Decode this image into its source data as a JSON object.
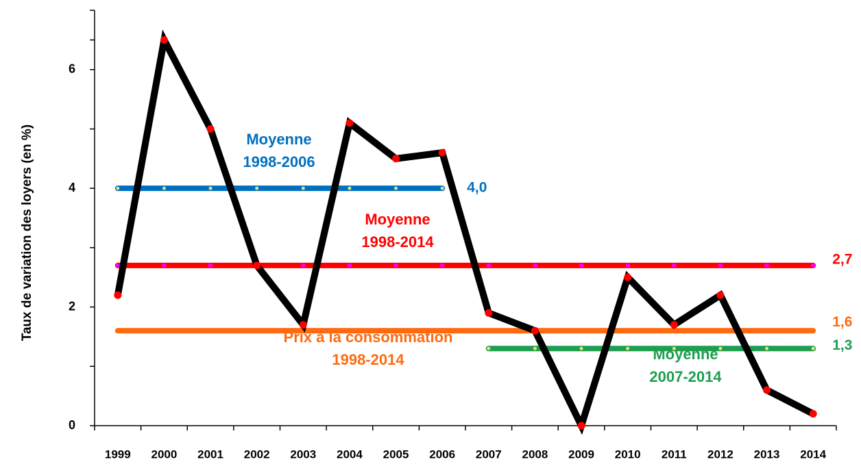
{
  "chart_data": {
    "type": "line",
    "y_label": "Taux de variation des loyers  (en %)",
    "categories": [
      "1999",
      "2000",
      "2001",
      "2002",
      "2003",
      "2004",
      "2005",
      "2006",
      "2007",
      "2008",
      "2009",
      "2010",
      "2011",
      "2012",
      "2013",
      "2014"
    ],
    "ylim": [
      0,
      7
    ],
    "yticks": [
      0,
      2,
      4,
      6
    ],
    "series": [
      {
        "color": "#000000",
        "marker_color": "#ff0000",
        "values": [
          2.2,
          6.5,
          5.0,
          2.7,
          1.7,
          5.1,
          4.5,
          4.6,
          1.9,
          1.6,
          0,
          2.5,
          1.7,
          2.2,
          0.6,
          0.2
        ]
      },
      {
        "color": "#0070c0",
        "marker_color": "#e0e080",
        "values": [
          4.0,
          4.0,
          4.0,
          4.0,
          4.0,
          4.0,
          4.0,
          4.0,
          null,
          null,
          null,
          null,
          null,
          null,
          null,
          null
        ],
        "value_labels": [
          null,
          null,
          null,
          null,
          null,
          null,
          null,
          "4,0",
          null,
          null,
          null,
          null,
          null,
          null,
          null,
          null
        ]
      },
      {
        "color": "#ff0000",
        "marker_color": "#ff00ff",
        "values": [
          2.7,
          2.7,
          2.7,
          2.7,
          2.7,
          2.7,
          2.7,
          2.7,
          2.7,
          2.7,
          2.7,
          2.7,
          2.7,
          2.7,
          2.7,
          2.7
        ],
        "value_labels": [
          null,
          null,
          null,
          null,
          null,
          null,
          null,
          null,
          null,
          null,
          null,
          null,
          null,
          null,
          null,
          "2,7"
        ]
      },
      {
        "color": "#ff6a10",
        "values": [
          1.6,
          1.6,
          1.6,
          1.6,
          1.6,
          1.6,
          1.6,
          1.6,
          1.6,
          1.6,
          1.6,
          1.6,
          1.6,
          1.6,
          1.6,
          1.6
        ],
        "value_labels": [
          null,
          null,
          null,
          null,
          null,
          null,
          null,
          null,
          null,
          null,
          null,
          null,
          null,
          null,
          null,
          "1,6"
        ]
      },
      {
        "color": "#1e9e50",
        "marker_color": "#f0e070",
        "values": [
          null,
          null,
          null,
          null,
          null,
          null,
          null,
          null,
          1.3,
          1.3,
          1.3,
          1.3,
          1.3,
          1.3,
          1.3,
          1.3
        ],
        "value_labels": [
          null,
          null,
          null,
          null,
          null,
          null,
          null,
          null,
          null,
          null,
          null,
          null,
          null,
          null,
          null,
          "1,3"
        ]
      }
    ],
    "annotations": [
      {
        "lines": [
          "Moyenne",
          "1998-2006"
        ],
        "color": "#0070c0"
      },
      {
        "lines": [
          "Moyenne",
          "1998-2014"
        ],
        "color": "#ff0000"
      },
      {
        "lines": [
          "Prix à la consommation",
          "1998-2014"
        ],
        "color": "#ff6a10"
      },
      {
        "lines": [
          "Moyenne",
          "2007-2014"
        ],
        "color": "#1e9e50"
      }
    ]
  }
}
